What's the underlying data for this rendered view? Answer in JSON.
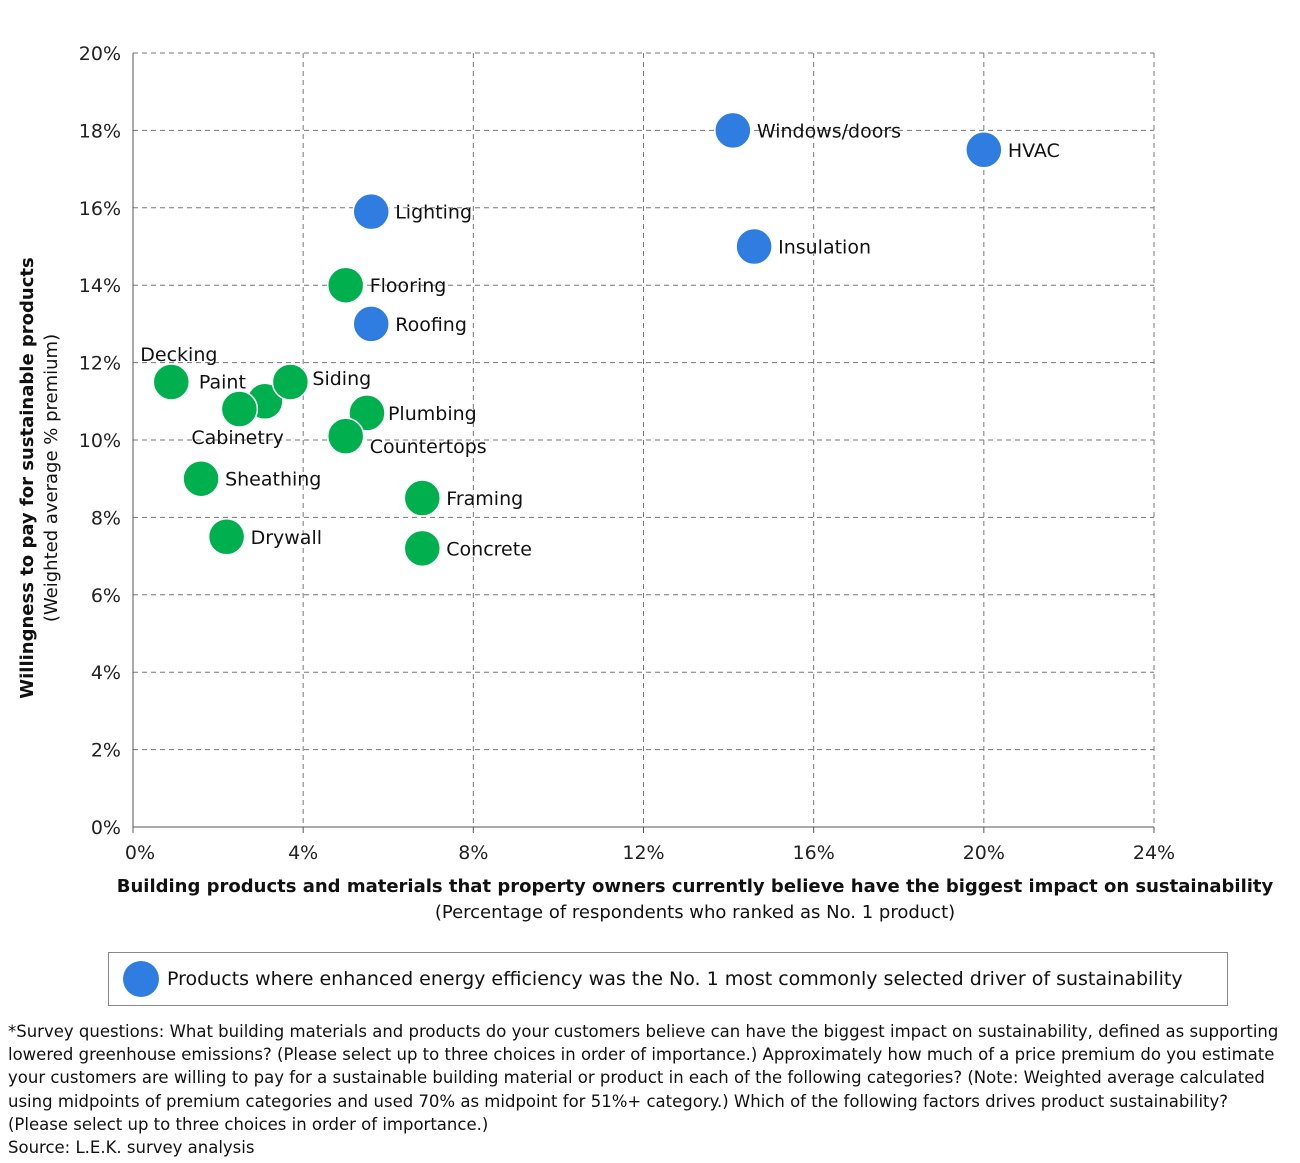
{
  "chart_data": {
    "type": "scatter",
    "xlabel": "Building products and materials that property owners currently believe have the biggest impact on sustainability",
    "xlabel_sub": "(Percentage of respondents who ranked as No. 1 product)",
    "ylabel": "Willingness to pay for sustainable products",
    "ylabel_sub": "(Weighted average % premium)",
    "xlim": [
      0,
      24
    ],
    "ylim": [
      0,
      20
    ],
    "x_ticks": [
      "0%",
      "4%",
      "8%",
      "12%",
      "16%",
      "20%",
      "24%"
    ],
    "y_ticks": [
      "0%",
      "2%",
      "4%",
      "6%",
      "8%",
      "10%",
      "12%",
      "14%",
      "16%",
      "18%",
      "20%"
    ],
    "grid": true,
    "colors": {
      "energy_efficiency": "#2f7de1",
      "other": "#00b04f"
    },
    "points": [
      {
        "label": "Decking",
        "x": 0.9,
        "y": 11.5,
        "group": "other"
      },
      {
        "label": "Paint",
        "x": 3.1,
        "y": 11.0,
        "group": "other"
      },
      {
        "label": "Cabinetry",
        "x": 2.5,
        "y": 10.8,
        "group": "other"
      },
      {
        "label": "Siding",
        "x": 3.7,
        "y": 11.5,
        "group": "other"
      },
      {
        "label": "Flooring",
        "x": 5.0,
        "y": 14.0,
        "group": "other"
      },
      {
        "label": "Plumbing",
        "x": 5.5,
        "y": 10.7,
        "group": "other"
      },
      {
        "label": "Countertops",
        "x": 5.0,
        "y": 10.1,
        "group": "other"
      },
      {
        "label": "Sheathing",
        "x": 1.6,
        "y": 9.0,
        "group": "other"
      },
      {
        "label": "Framing",
        "x": 6.8,
        "y": 8.5,
        "group": "other"
      },
      {
        "label": "Drywall",
        "x": 2.2,
        "y": 7.5,
        "group": "other"
      },
      {
        "label": "Concrete",
        "x": 6.8,
        "y": 7.2,
        "group": "other"
      },
      {
        "label": "Windows/doors",
        "x": 14.1,
        "y": 18.0,
        "group": "energy_efficiency"
      },
      {
        "label": "HVAC",
        "x": 20.0,
        "y": 17.5,
        "group": "energy_efficiency"
      },
      {
        "label": "Lighting",
        "x": 5.6,
        "y": 15.9,
        "group": "energy_efficiency"
      },
      {
        "label": "Insulation",
        "x": 14.6,
        "y": 15.0,
        "group": "energy_efficiency"
      },
      {
        "label": "Roofing",
        "x": 5.6,
        "y": 13.0,
        "group": "energy_efficiency"
      }
    ],
    "legend": {
      "label": "Products where enhanced energy efficiency was the No. 1 most commonly selected driver of sustainability",
      "placement": "bottom"
    }
  },
  "footnote": [
    "*Survey questions: What building materials and products do your customers believe can have the biggest impact on sustainability, defined as supporting lowered greenhouse emissions? (Please select up to three choices in order of importance.) Approximately how much of a price premium do you estimate your customers are willing to pay for a sustainable building material or product in each of the following categories? (Note: Weighted average calculated using midpoints of premium categories and used 70% as midpoint for 51%+ category.) Which of the following factors drives product sustainability? (Please select up to three choices in order of importance.)",
    "Source: L.E.K. survey analysis"
  ]
}
